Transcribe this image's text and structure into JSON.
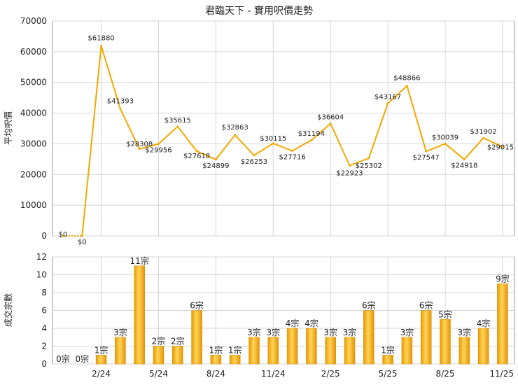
{
  "title": "君臨天下 - 實用呎價走勢",
  "chart_data": [
    {
      "type": "line",
      "ylabel": "平均呎價",
      "ylim": [
        0,
        70000
      ],
      "yticks": [
        0,
        10000,
        20000,
        30000,
        40000,
        50000,
        60000,
        70000
      ],
      "color": "#f5a800",
      "values": [
        0,
        0,
        61880,
        41393,
        28308,
        29956,
        35615,
        27618,
        24899,
        32863,
        26253,
        30115,
        27716,
        31194,
        36604,
        22923,
        25302,
        43167,
        48866,
        27547,
        30039,
        24918,
        31902,
        29015
      ],
      "labels": [
        "$0",
        "$0",
        "$61880",
        "$41393",
        "$28308",
        "$29956",
        "$35615",
        "$27618",
        "$24899",
        "$32863",
        "$26253",
        "$30115",
        "$27716",
        "$31194",
        "$36604",
        "$22923",
        "$25302",
        "$43167",
        "$48866",
        "$27547",
        "$30039",
        "$24918",
        "$31902",
        "$29015"
      ]
    },
    {
      "type": "bar",
      "ylabel": "成交宗數",
      "ylim": [
        0,
        12
      ],
      "yticks": [
        0,
        2,
        4,
        6,
        8,
        10,
        12
      ],
      "color": "#f5a800",
      "categories": [
        "2/24",
        "5/24",
        "8/24",
        "11/24",
        "2/25",
        "5/25",
        "8/25",
        "11/25"
      ],
      "category_index": [
        2,
        5,
        8,
        11,
        14,
        17,
        20,
        23
      ],
      "values": [
        0,
        0,
        1,
        3,
        11,
        2,
        2,
        6,
        1,
        1,
        3,
        3,
        4,
        4,
        3,
        3,
        6,
        1,
        3,
        6,
        5,
        3,
        4,
        9
      ],
      "labels": [
        "0宗",
        "0宗",
        "1宗",
        "3宗",
        "11宗",
        "2宗",
        "2宗",
        "6宗",
        "1宗",
        "1宗",
        "3宗",
        "3宗",
        "4宗",
        "4宗",
        "3宗",
        "3宗",
        "6宗",
        "1宗",
        "3宗",
        "6宗",
        "5宗",
        "3宗",
        "4宗",
        "9宗"
      ]
    }
  ]
}
